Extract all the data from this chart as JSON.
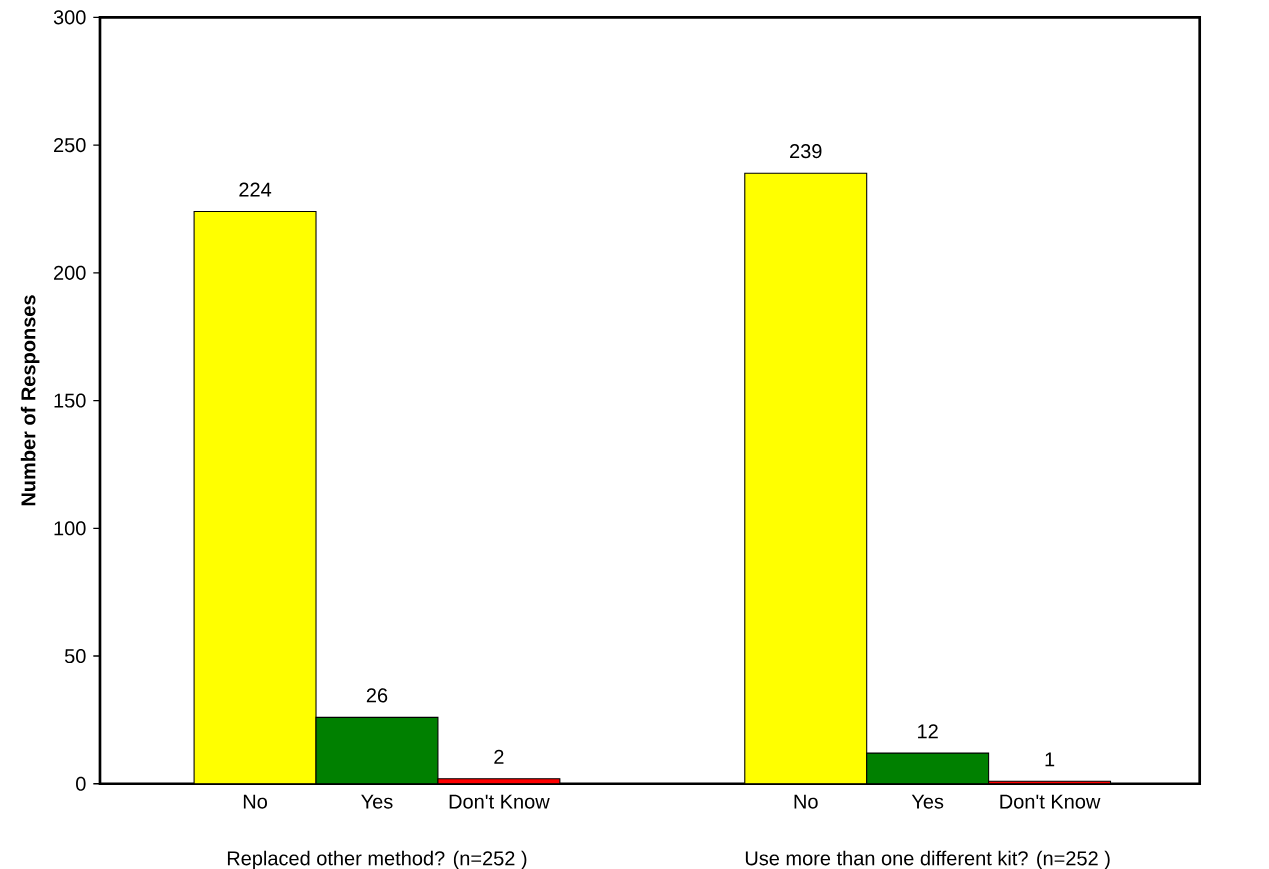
{
  "chart_data": {
    "type": "bar",
    "ylabel": "Number of Responses",
    "categories": [
      "Replaced other method? (n=252 )",
      "Use more than one different kit? (n=252 )"
    ],
    "series": [
      {
        "name": "No",
        "color": "#ffff00",
        "values": [
          224,
          239
        ]
      },
      {
        "name": "Yes",
        "color": "#008000",
        "values": [
          26,
          12
        ]
      },
      {
        "name": "Don't Know",
        "color": "#ff0000",
        "values": [
          2,
          1
        ]
      }
    ],
    "ylim": [
      0,
      300
    ],
    "yticks": [
      0,
      50,
      100,
      150,
      200,
      250,
      300
    ],
    "data_labels": true
  }
}
